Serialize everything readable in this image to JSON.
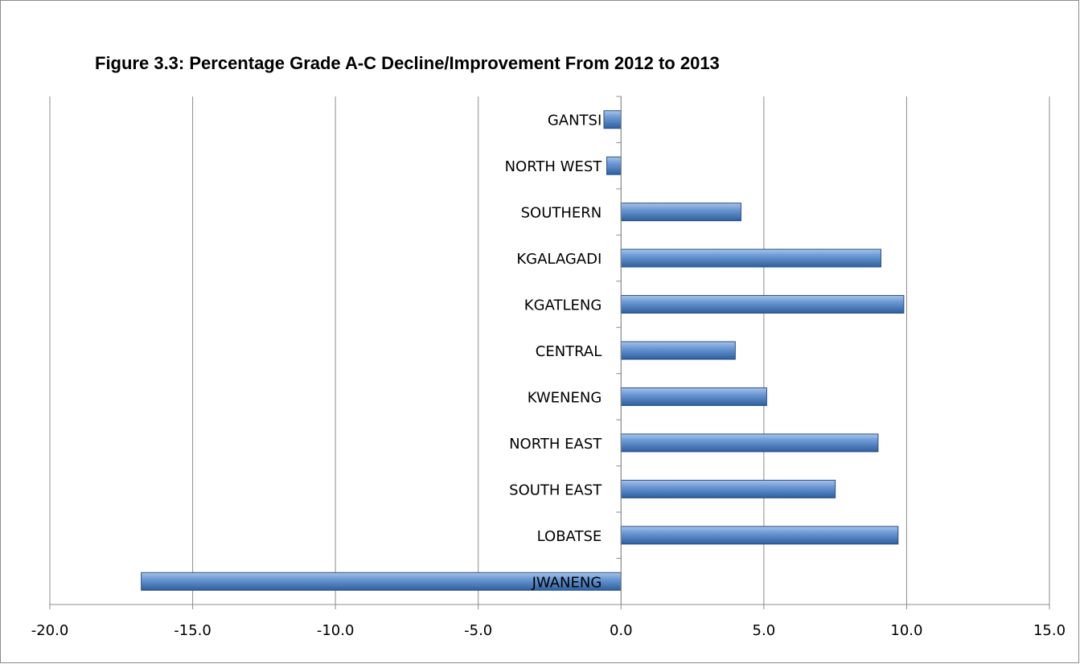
{
  "chart_data": {
    "type": "bar",
    "orientation": "horizontal",
    "title": "Figure 3.3: Percentage Grade A-C Decline/Improvement From 2012 to 2013",
    "xlabel": "",
    "ylabel": "",
    "xlim": [
      -20,
      15
    ],
    "x_ticks": [
      "-20.0",
      "-15.0",
      "-10.0",
      "-5.0",
      "0.0",
      "5.0",
      "10.0",
      "15.0"
    ],
    "grid": "vertical",
    "legend": "none",
    "bar_color": "#4f81bd",
    "categories": [
      "GANTSI",
      "NORTH WEST",
      "SOUTHERN",
      "KGALAGADI",
      "KGATLENG",
      "CENTRAL",
      "KWENENG",
      "NORTH EAST",
      "SOUTH EAST",
      "LOBATSE",
      "JWANENG"
    ],
    "values": [
      -0.6,
      -0.5,
      4.2,
      9.1,
      9.9,
      4.0,
      5.1,
      9.0,
      7.5,
      9.7,
      -16.8
    ]
  }
}
